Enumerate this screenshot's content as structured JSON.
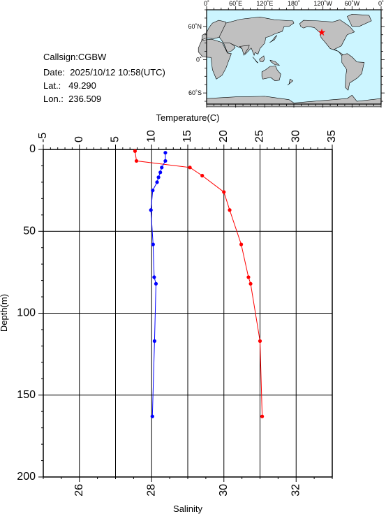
{
  "station": {
    "callsign": "Callsign:CGBW",
    "date": "Date:  2025/10/12 10:58(UTC)",
    "lat": "Lat.:   49.290",
    "lon": "Lon.:  236.509"
  },
  "map": {
    "top_labels": [
      "0˚",
      "60˚E",
      "120˚E",
      "180˚",
      "120˚W",
      "60˚W",
      "0˚"
    ],
    "left_labels": [
      "60˚N",
      "0˚",
      "60˚S"
    ],
    "ocean_color": "#ccf5ff",
    "land_color": "#c0c0c0",
    "marker_color": "#ff0000",
    "marker_icon": "star-icon"
  },
  "chart_data": {
    "type": "line",
    "y_axis": {
      "label": "Depth(m)",
      "range": [
        0,
        200
      ],
      "inverted": true,
      "ticks": [
        0,
        50,
        100,
        150,
        200
      ]
    },
    "top_axis": {
      "label": "Temperature(C)",
      "range": [
        -5,
        35
      ],
      "ticks": [
        -5,
        0,
        5,
        10,
        15,
        20,
        25,
        30,
        35
      ]
    },
    "bottom_axis": {
      "label": "Salinity",
      "range": [
        25,
        33
      ],
      "ticks": [
        26,
        28,
        30,
        32
      ]
    },
    "grid": true,
    "series": [
      {
        "color": "#ff0000",
        "axis": "top",
        "points": [
          [
            7.7,
            1
          ],
          [
            7.9,
            7
          ],
          [
            15.3,
            11
          ],
          [
            17.0,
            16
          ],
          [
            20.0,
            26
          ],
          [
            20.8,
            37
          ],
          [
            22.4,
            58
          ],
          [
            23.4,
            78
          ],
          [
            23.7,
            82
          ],
          [
            25.0,
            117
          ],
          [
            25.3,
            163
          ]
        ]
      },
      {
        "color": "#0000ff",
        "axis": "bottom",
        "points": [
          [
            28.38,
            2
          ],
          [
            28.38,
            7
          ],
          [
            28.28,
            11
          ],
          [
            28.24,
            14
          ],
          [
            28.19,
            17
          ],
          [
            28.15,
            20
          ],
          [
            28.03,
            25
          ],
          [
            27.98,
            37
          ],
          [
            28.04,
            58
          ],
          [
            28.07,
            78
          ],
          [
            28.12,
            82
          ],
          [
            28.08,
            117
          ],
          [
            28.02,
            163
          ]
        ]
      }
    ]
  }
}
